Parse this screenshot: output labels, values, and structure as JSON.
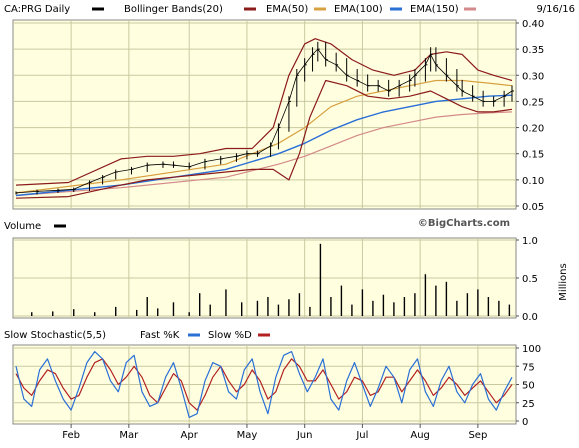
{
  "header": {
    "symbol_label": "CA:PRG Daily",
    "date": "9/16/16",
    "legend": [
      {
        "name": "Bollinger Bands(20)",
        "color": "#8b1a1a"
      },
      {
        "name": "EMA(50)",
        "color": "#d8a040"
      },
      {
        "name": "EMA(100)",
        "color": "#2a6fd6"
      },
      {
        "name": "EMA(150)",
        "color": "#d48a8a"
      }
    ]
  },
  "watermark": "©BigCharts.com",
  "colors": {
    "panel_bg": "#ffffe0",
    "grid": "#c9c9a0",
    "price": "#000000",
    "bollinger": "#8b1a1a",
    "ema50": "#d8a040",
    "ema100": "#2a6fd6",
    "ema150": "#d48a8a",
    "volume": "#000000",
    "fast_k": "#2a6fd6",
    "slow_d": "#b22222"
  },
  "chart_data": [
    {
      "type": "line",
      "panel": "price",
      "y_ticks": [
        "0.40",
        "0.35",
        "0.30",
        "0.25",
        "0.20",
        "0.15",
        "0.10",
        "0.05"
      ],
      "ylim": [
        0.05,
        0.4
      ],
      "x_labels": [
        "Feb",
        "Mar",
        "Apr",
        "May",
        "Jun",
        "Jul",
        "Aug",
        "Sep"
      ],
      "x_label_day": [
        21,
        43,
        66,
        88,
        110,
        132,
        154,
        176
      ],
      "price_closes": [
        [
          0,
          0.075
        ],
        [
          8,
          0.078
        ],
        [
          16,
          0.08
        ],
        [
          22,
          0.082
        ],
        [
          28,
          0.095
        ],
        [
          33,
          0.105
        ],
        [
          38,
          0.115
        ],
        [
          44,
          0.12
        ],
        [
          50,
          0.128
        ],
        [
          56,
          0.13
        ],
        [
          60,
          0.128
        ],
        [
          66,
          0.125
        ],
        [
          72,
          0.135
        ],
        [
          78,
          0.14
        ],
        [
          84,
          0.145
        ],
        [
          88,
          0.15
        ],
        [
          92,
          0.15
        ],
        [
          97,
          0.165
        ],
        [
          100,
          0.2
        ],
        [
          104,
          0.25
        ],
        [
          107,
          0.3
        ],
        [
          110,
          0.32
        ],
        [
          113,
          0.34
        ],
        [
          115,
          0.35
        ],
        [
          118,
          0.33
        ],
        [
          122,
          0.32
        ],
        [
          126,
          0.3
        ],
        [
          130,
          0.29
        ],
        [
          134,
          0.28
        ],
        [
          138,
          0.28
        ],
        [
          142,
          0.27
        ],
        [
          146,
          0.28
        ],
        [
          150,
          0.29
        ],
        [
          152,
          0.3
        ],
        [
          156,
          0.32
        ],
        [
          158,
          0.34
        ],
        [
          160,
          0.32
        ],
        [
          164,
          0.3
        ],
        [
          168,
          0.28
        ],
        [
          170,
          0.27
        ],
        [
          174,
          0.26
        ],
        [
          178,
          0.25
        ],
        [
          182,
          0.25
        ],
        [
          186,
          0.26
        ],
        [
          189,
          0.27
        ]
      ],
      "bollinger_upper": [
        [
          0,
          0.09
        ],
        [
          20,
          0.095
        ],
        [
          40,
          0.14
        ],
        [
          50,
          0.145
        ],
        [
          60,
          0.145
        ],
        [
          70,
          0.15
        ],
        [
          80,
          0.16
        ],
        [
          90,
          0.16
        ],
        [
          98,
          0.2
        ],
        [
          104,
          0.3
        ],
        [
          110,
          0.36
        ],
        [
          114,
          0.37
        ],
        [
          120,
          0.36
        ],
        [
          128,
          0.33
        ],
        [
          136,
          0.31
        ],
        [
          144,
          0.3
        ],
        [
          152,
          0.31
        ],
        [
          158,
          0.34
        ],
        [
          164,
          0.345
        ],
        [
          170,
          0.34
        ],
        [
          176,
          0.31
        ],
        [
          182,
          0.3
        ],
        [
          189,
          0.29
        ]
      ],
      "bollinger_lower": [
        [
          0,
          0.065
        ],
        [
          20,
          0.068
        ],
        [
          40,
          0.09
        ],
        [
          50,
          0.1
        ],
        [
          60,
          0.105
        ],
        [
          70,
          0.11
        ],
        [
          80,
          0.115
        ],
        [
          90,
          0.12
        ],
        [
          98,
          0.12
        ],
        [
          104,
          0.1
        ],
        [
          108,
          0.15
        ],
        [
          112,
          0.22
        ],
        [
          118,
          0.29
        ],
        [
          126,
          0.28
        ],
        [
          134,
          0.26
        ],
        [
          142,
          0.255
        ],
        [
          150,
          0.26
        ],
        [
          158,
          0.27
        ],
        [
          164,
          0.255
        ],
        [
          170,
          0.24
        ],
        [
          176,
          0.23
        ],
        [
          182,
          0.23
        ],
        [
          189,
          0.235
        ]
      ],
      "ema50": [
        [
          0,
          0.075
        ],
        [
          40,
          0.1
        ],
        [
          80,
          0.13
        ],
        [
          100,
          0.17
        ],
        [
          110,
          0.2
        ],
        [
          120,
          0.24
        ],
        [
          130,
          0.26
        ],
        [
          140,
          0.27
        ],
        [
          150,
          0.28
        ],
        [
          160,
          0.29
        ],
        [
          170,
          0.29
        ],
        [
          180,
          0.285
        ],
        [
          189,
          0.28
        ]
      ],
      "ema100": [
        [
          0,
          0.07
        ],
        [
          40,
          0.09
        ],
        [
          80,
          0.12
        ],
        [
          100,
          0.15
        ],
        [
          110,
          0.17
        ],
        [
          120,
          0.195
        ],
        [
          130,
          0.215
        ],
        [
          140,
          0.23
        ],
        [
          150,
          0.24
        ],
        [
          160,
          0.25
        ],
        [
          170,
          0.255
        ],
        [
          180,
          0.26
        ],
        [
          189,
          0.262
        ]
      ],
      "ema150": [
        [
          0,
          0.07
        ],
        [
          40,
          0.085
        ],
        [
          80,
          0.105
        ],
        [
          100,
          0.13
        ],
        [
          110,
          0.145
        ],
        [
          120,
          0.165
        ],
        [
          130,
          0.185
        ],
        [
          140,
          0.2
        ],
        [
          150,
          0.21
        ],
        [
          160,
          0.22
        ],
        [
          170,
          0.225
        ],
        [
          180,
          0.228
        ],
        [
          189,
          0.23
        ]
      ]
    },
    {
      "type": "bar",
      "panel": "volume",
      "title": "Volume",
      "ylabel": "Millions",
      "y_ticks": [
        "1.0",
        "0.5",
        "0.0"
      ],
      "ylim": [
        0,
        1.0
      ],
      "volumes": [
        [
          6,
          0.05
        ],
        [
          14,
          0.06
        ],
        [
          22,
          0.09
        ],
        [
          30,
          0.05
        ],
        [
          38,
          0.12
        ],
        [
          46,
          0.08
        ],
        [
          50,
          0.25
        ],
        [
          54,
          0.1
        ],
        [
          60,
          0.18
        ],
        [
          66,
          0.05
        ],
        [
          70,
          0.3
        ],
        [
          74,
          0.15
        ],
        [
          80,
          0.35
        ],
        [
          86,
          0.18
        ],
        [
          92,
          0.2
        ],
        [
          96,
          0.25
        ],
        [
          100,
          0.15
        ],
        [
          104,
          0.22
        ],
        [
          108,
          0.3
        ],
        [
          112,
          0.12
        ],
        [
          116,
          0.95
        ],
        [
          120,
          0.25
        ],
        [
          124,
          0.4
        ],
        [
          128,
          0.15
        ],
        [
          132,
          0.35
        ],
        [
          136,
          0.2
        ],
        [
          140,
          0.28
        ],
        [
          144,
          0.18
        ],
        [
          148,
          0.25
        ],
        [
          152,
          0.3
        ],
        [
          156,
          0.55
        ],
        [
          160,
          0.4
        ],
        [
          164,
          0.45
        ],
        [
          168,
          0.2
        ],
        [
          172,
          0.3
        ],
        [
          176,
          0.35
        ],
        [
          180,
          0.25
        ],
        [
          184,
          0.2
        ],
        [
          188,
          0.15
        ]
      ]
    },
    {
      "type": "line",
      "panel": "stochastic",
      "title": "Slow Stochastic(5,5)",
      "legend": [
        {
          "name": "Fast %K",
          "color": "#2a6fd6"
        },
        {
          "name": "Slow %D",
          "color": "#b22222"
        }
      ],
      "y_ticks": [
        "100",
        "75",
        "50",
        "25",
        "0"
      ],
      "ylim": [
        0,
        100
      ],
      "fast_k": [
        [
          0,
          75
        ],
        [
          3,
          30
        ],
        [
          6,
          20
        ],
        [
          9,
          70
        ],
        [
          12,
          85
        ],
        [
          15,
          55
        ],
        [
          18,
          30
        ],
        [
          21,
          15
        ],
        [
          24,
          45
        ],
        [
          27,
          80
        ],
        [
          30,
          95
        ],
        [
          33,
          85
        ],
        [
          36,
          55
        ],
        [
          39,
          40
        ],
        [
          42,
          80
        ],
        [
          45,
          90
        ],
        [
          48,
          40
        ],
        [
          51,
          20
        ],
        [
          54,
          25
        ],
        [
          57,
          60
        ],
        [
          60,
          80
        ],
        [
          63,
          45
        ],
        [
          66,
          5
        ],
        [
          69,
          10
        ],
        [
          72,
          55
        ],
        [
          75,
          80
        ],
        [
          78,
          75
        ],
        [
          81,
          40
        ],
        [
          84,
          30
        ],
        [
          87,
          70
        ],
        [
          90,
          85
        ],
        [
          93,
          40
        ],
        [
          96,
          10
        ],
        [
          99,
          60
        ],
        [
          102,
          90
        ],
        [
          105,
          95
        ],
        [
          108,
          65
        ],
        [
          111,
          40
        ],
        [
          114,
          60
        ],
        [
          117,
          85
        ],
        [
          120,
          30
        ],
        [
          123,
          15
        ],
        [
          126,
          55
        ],
        [
          129,
          80
        ],
        [
          132,
          50
        ],
        [
          135,
          20
        ],
        [
          138,
          45
        ],
        [
          141,
          75
        ],
        [
          144,
          60
        ],
        [
          147,
          25
        ],
        [
          150,
          70
        ],
        [
          153,
          85
        ],
        [
          156,
          40
        ],
        [
          159,
          20
        ],
        [
          162,
          55
        ],
        [
          165,
          75
        ],
        [
          168,
          40
        ],
        [
          171,
          25
        ],
        [
          174,
          50
        ],
        [
          177,
          65
        ],
        [
          180,
          30
        ],
        [
          183,
          15
        ],
        [
          186,
          40
        ],
        [
          189,
          60
        ]
      ],
      "slow_d": [
        [
          0,
          65
        ],
        [
          3,
          45
        ],
        [
          6,
          35
        ],
        [
          9,
          55
        ],
        [
          12,
          70
        ],
        [
          15,
          65
        ],
        [
          18,
          45
        ],
        [
          21,
          30
        ],
        [
          24,
          35
        ],
        [
          27,
          60
        ],
        [
          30,
          80
        ],
        [
          33,
          85
        ],
        [
          36,
          70
        ],
        [
          39,
          50
        ],
        [
          42,
          60
        ],
        [
          45,
          75
        ],
        [
          48,
          60
        ],
        [
          51,
          35
        ],
        [
          54,
          25
        ],
        [
          57,
          45
        ],
        [
          60,
          65
        ],
        [
          63,
          55
        ],
        [
          66,
          25
        ],
        [
          69,
          15
        ],
        [
          72,
          35
        ],
        [
          75,
          60
        ],
        [
          78,
          75
        ],
        [
          81,
          55
        ],
        [
          84,
          40
        ],
        [
          87,
          50
        ],
        [
          90,
          70
        ],
        [
          93,
          55
        ],
        [
          96,
          30
        ],
        [
          99,
          40
        ],
        [
          102,
          70
        ],
        [
          105,
          85
        ],
        [
          108,
          75
        ],
        [
          111,
          55
        ],
        [
          114,
          55
        ],
        [
          117,
          70
        ],
        [
          120,
          50
        ],
        [
          123,
          30
        ],
        [
          126,
          40
        ],
        [
          129,
          60
        ],
        [
          132,
          55
        ],
        [
          135,
          35
        ],
        [
          138,
          40
        ],
        [
          141,
          60
        ],
        [
          144,
          60
        ],
        [
          147,
          40
        ],
        [
          150,
          55
        ],
        [
          153,
          70
        ],
        [
          156,
          55
        ],
        [
          159,
          35
        ],
        [
          162,
          45
        ],
        [
          165,
          60
        ],
        [
          168,
          50
        ],
        [
          171,
          35
        ],
        [
          174,
          45
        ],
        [
          177,
          55
        ],
        [
          180,
          40
        ],
        [
          183,
          25
        ],
        [
          186,
          35
        ],
        [
          189,
          50
        ]
      ]
    }
  ]
}
